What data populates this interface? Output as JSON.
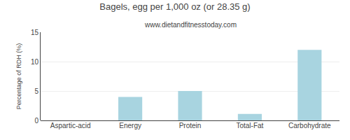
{
  "chart_data": {
    "type": "bar",
    "title": "Bagels, egg per 1,000 oz (or 28.35 g)",
    "subtitle": "www.dietandfitnesstoday.com",
    "categories": [
      "Aspartic-acid",
      "Energy",
      "Protein",
      "Total-Fat",
      "Carbohydrate"
    ],
    "values": [
      0.0,
      4.0,
      5.0,
      1.1,
      12.0
    ],
    "color": "#a8d4e0",
    "ylabel": "Percentage of RDH (%)",
    "ylim": [
      0,
      15
    ],
    "yticks": [
      0,
      5,
      10,
      15
    ],
    "grid": true
  }
}
